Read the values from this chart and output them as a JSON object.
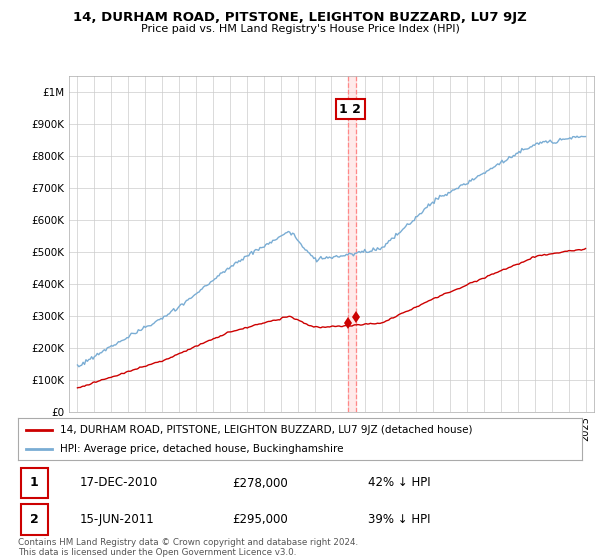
{
  "title": "14, DURHAM ROAD, PITSTONE, LEIGHTON BUZZARD, LU7 9JZ",
  "subtitle": "Price paid vs. HM Land Registry's House Price Index (HPI)",
  "hpi_label": "HPI: Average price, detached house, Buckinghamshire",
  "property_label": "14, DURHAM ROAD, PITSTONE, LEIGHTON BUZZARD, LU7 9JZ (detached house)",
  "hpi_color": "#7aadd4",
  "property_color": "#cc0000",
  "vline_color": "#ff8888",
  "annotation1": {
    "num": "1",
    "date": "17-DEC-2010",
    "price": "£278,000",
    "pct": "42% ↓ HPI"
  },
  "annotation2": {
    "num": "2",
    "date": "15-JUN-2011",
    "price": "£295,000",
    "pct": "39% ↓ HPI"
  },
  "ylim": [
    0,
    1050000
  ],
  "yticks": [
    0,
    100000,
    200000,
    300000,
    400000,
    500000,
    600000,
    700000,
    800000,
    900000,
    1000000
  ],
  "ytick_labels": [
    "£0",
    "£100K",
    "£200K",
    "£300K",
    "£400K",
    "£500K",
    "£600K",
    "£700K",
    "£800K",
    "£900K",
    "£1M"
  ],
  "sale1_t": 2010.958,
  "sale2_t": 2011.458,
  "sale1_price": 278000,
  "sale2_price": 295000,
  "footer": "Contains HM Land Registry data © Crown copyright and database right 2024.\nThis data is licensed under the Open Government Licence v3.0.",
  "background_color": "#ffffff",
  "grid_color": "#cccccc"
}
